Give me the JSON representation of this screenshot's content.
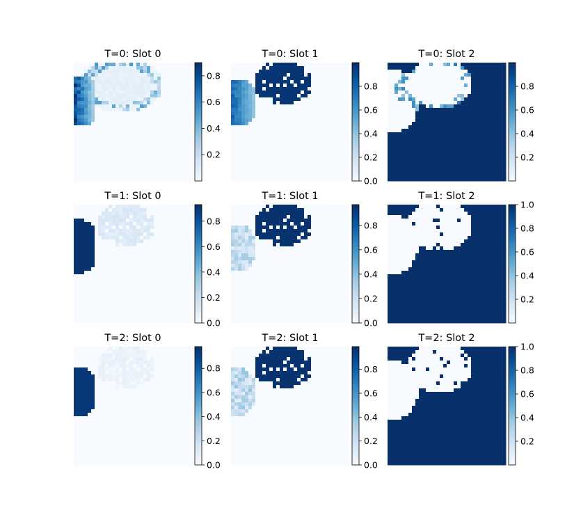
{
  "chart_data": {
    "type": "heatmap",
    "colormap": "Blues",
    "grid_size": 34,
    "colorscale": {
      "low": "#f7fbff",
      "high": "#08306b"
    },
    "panels": [
      {
        "title": "T=0: Slot 0",
        "colorbar_ticks": [
          "0.2",
          "0.4",
          "0.6",
          "0.8"
        ],
        "vmin": 0.0,
        "vmax": 0.9,
        "description_values": {
          "left_blob_peak": 0.9,
          "ring_peak": 0.5,
          "background": 0.0
        }
      },
      {
        "title": "T=0: Slot 1",
        "colorbar_ticks": [
          "0.0",
          "0.2",
          "0.4",
          "0.6",
          "0.8"
        ],
        "vmin": 0.0,
        "vmax": 1.0,
        "description_values": {
          "top_blob": 0.98,
          "left_blob_peak": 0.85,
          "background": 0.0
        }
      },
      {
        "title": "T=0: Slot 2",
        "colorbar_ticks": [
          "0.2",
          "0.4",
          "0.6",
          "0.8"
        ],
        "vmin": 0.0,
        "vmax": 1.0,
        "description_values": {
          "fill": 1.0,
          "holes": 0.0,
          "ring_peak": 0.6
        }
      },
      {
        "title": "T=1: Slot 0",
        "colorbar_ticks": [
          "0.0",
          "0.2",
          "0.4",
          "0.6",
          "0.8"
        ],
        "vmin": 0.0,
        "vmax": 0.93,
        "description_values": {
          "left_blob": 0.92,
          "top_blob": 0.15,
          "background": 0.0
        }
      },
      {
        "title": "T=1: Slot 1",
        "colorbar_ticks": [
          "0.0",
          "0.2",
          "0.4",
          "0.6",
          "0.8"
        ],
        "vmin": 0.0,
        "vmax": 0.97,
        "description_values": {
          "top_blob": 0.96,
          "left_blob_peak": 0.3,
          "background": 0.0
        }
      },
      {
        "title": "T=1: Slot 2",
        "colorbar_ticks": [
          "0.2",
          "0.4",
          "0.6",
          "0.8",
          "1.0"
        ],
        "vmin": 0.0,
        "vmax": 1.0,
        "description_values": {
          "fill": 1.0,
          "holes": 0.0
        }
      },
      {
        "title": "T=2: Slot 0",
        "colorbar_ticks": [
          "0.0",
          "0.2",
          "0.4",
          "0.6",
          "0.8"
        ],
        "vmin": 0.0,
        "vmax": 0.98,
        "description_values": {
          "left_blob": 0.95,
          "top_blob": 0.08,
          "background": 0.0
        }
      },
      {
        "title": "T=2: Slot 1",
        "colorbar_ticks": [
          "0.0",
          "0.2",
          "0.4",
          "0.6",
          "0.8"
        ],
        "vmin": 0.0,
        "vmax": 0.99,
        "description_values": {
          "top_blob": 0.98,
          "left_blob_peak": 0.3,
          "background": 0.0
        }
      },
      {
        "title": "T=2: Slot 2",
        "colorbar_ticks": [
          "0.2",
          "0.4",
          "0.6",
          "0.8",
          "1.0"
        ],
        "vmin": 0.0,
        "vmax": 1.0,
        "description_values": {
          "fill": 1.0,
          "holes": 0.0
        }
      }
    ]
  }
}
